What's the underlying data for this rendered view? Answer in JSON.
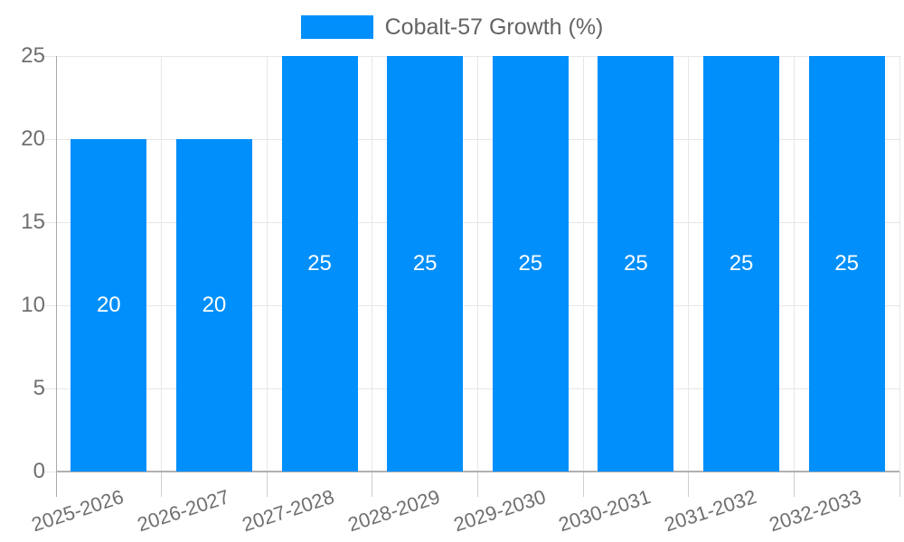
{
  "legend": {
    "label": "Cobalt-57 Growth (%)"
  },
  "chart_data": {
    "type": "bar",
    "title": "",
    "categories": [
      "2025-2026",
      "2026-2027",
      "2027-2028",
      "2028-2029",
      "2029-2030",
      "2030-2031",
      "2031-2032",
      "2032-2033"
    ],
    "series": [
      {
        "name": "Cobalt-57 Growth (%)",
        "values": [
          20,
          20,
          25,
          25,
          25,
          25,
          25,
          25
        ]
      }
    ],
    "data_labels": [
      "20",
      "20",
      "25",
      "25",
      "25",
      "25",
      "25",
      "25"
    ],
    "xlabel": "",
    "ylabel": "",
    "ylim": [
      0,
      25
    ],
    "yticks": [
      0,
      5,
      10,
      15,
      20,
      25
    ],
    "grid": true,
    "legend_position": "top",
    "bar_color": "#008FFB",
    "data_label_color": "#FFFFFF"
  }
}
